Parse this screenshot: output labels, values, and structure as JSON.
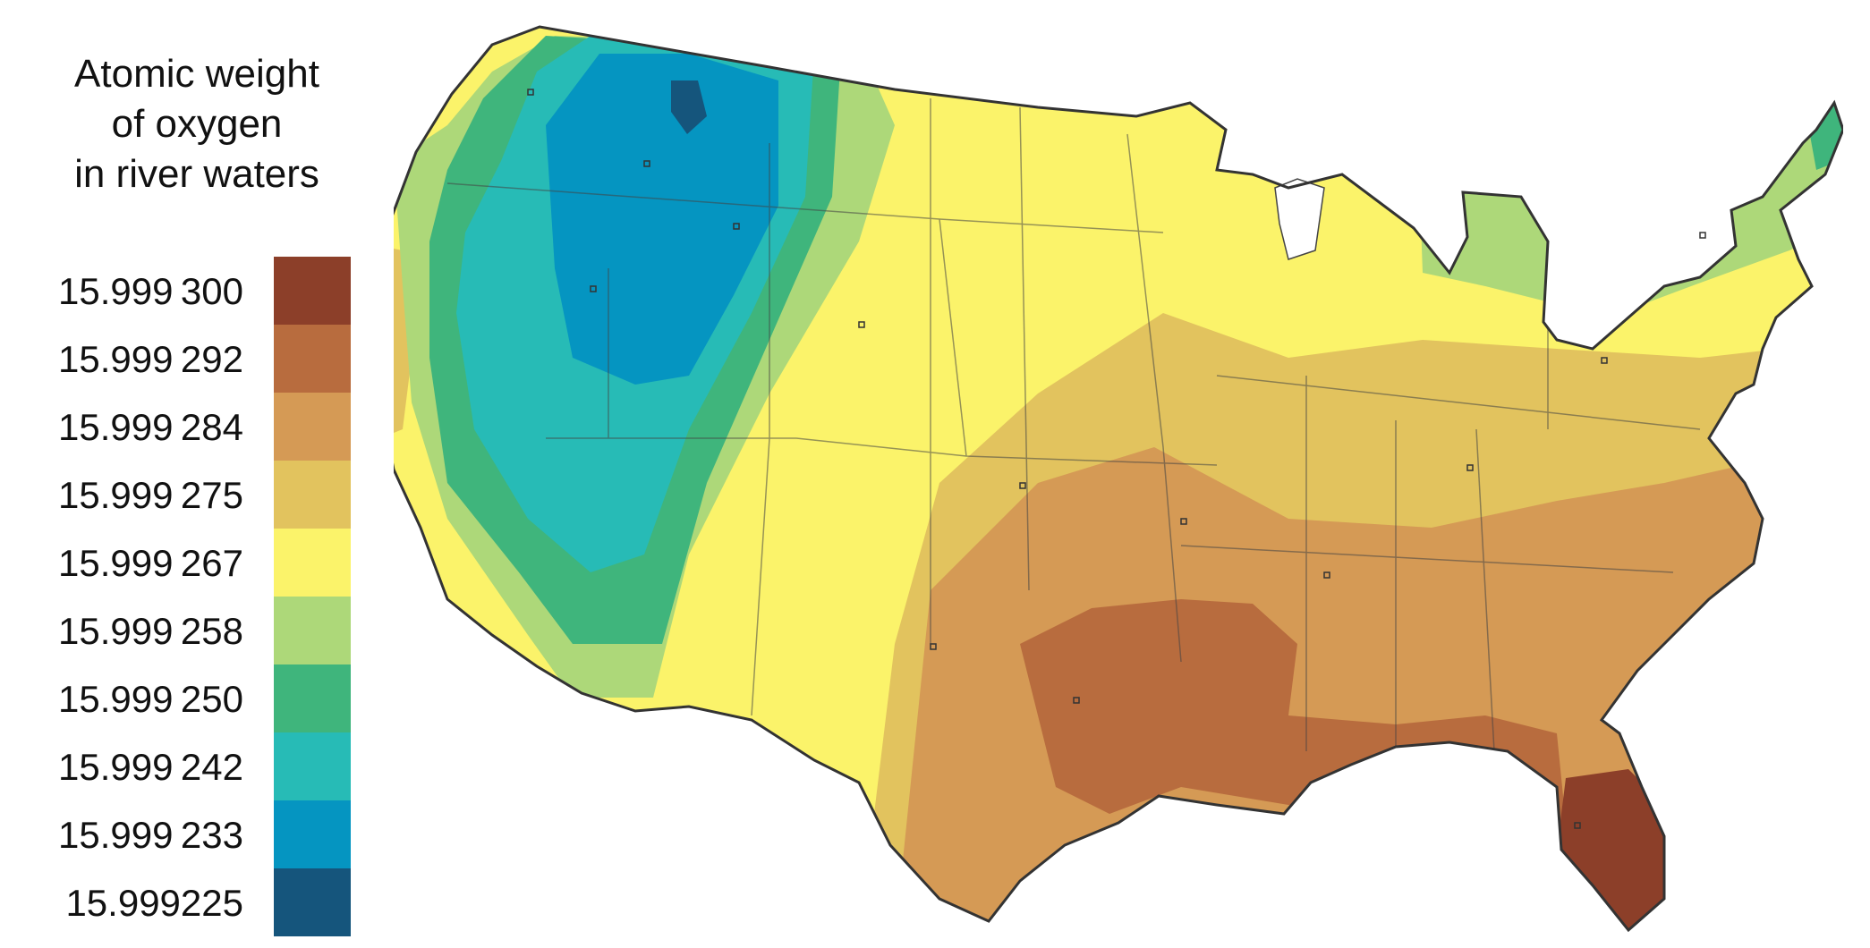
{
  "legend": {
    "title_lines": [
      "Atomic weight",
      "of oxygen",
      "in river waters"
    ],
    "classes": [
      {
        "label": "15.999 300",
        "color": "#8c3f29"
      },
      {
        "label": "15.999 292",
        "color": "#b86c3e"
      },
      {
        "label": "15.999 284",
        "color": "#d59a55"
      },
      {
        "label": "15.999 275",
        "color": "#e2c35e"
      },
      {
        "label": "15.999 267",
        "color": "#fbf36a"
      },
      {
        "label": "15.999 258",
        "color": "#add879"
      },
      {
        "label": "15.999 250",
        "color": "#3fb57c"
      },
      {
        "label": "15.999 242",
        "color": "#27bbb6"
      },
      {
        "label": "15.999 233",
        "color": "#0595c1"
      },
      {
        "label": "15.999225",
        "color": "#15557c"
      }
    ]
  },
  "map": {
    "region": "contiguous United States",
    "sample_marker": "hollow-square",
    "outline_color": "#333333"
  }
}
